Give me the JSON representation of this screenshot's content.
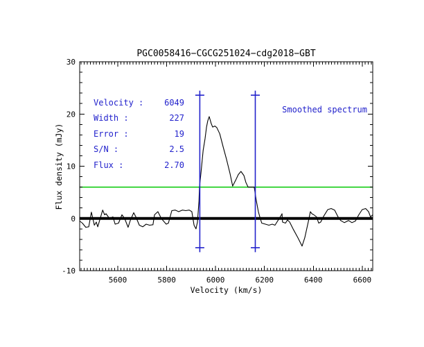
{
  "title": "PGC0058416−CGCG251024−cdg2018−GBT",
  "stats": [
    {
      "label": "Velocity :",
      "value": "6049"
    },
    {
      "label": "Width :",
      "value": "227"
    },
    {
      "label": "Error :",
      "value": "19"
    },
    {
      "label": "S/N :",
      "value": "2.5"
    },
    {
      "label": "Flux :",
      "value": "2.70"
    }
  ],
  "note": "Smoothed spectrum",
  "colors": {
    "accent": "#2222cc",
    "threshold": "#00c800",
    "spectrum": "#000000",
    "frame": "#000000",
    "background": "#ffffff"
  },
  "chart_data": {
    "type": "line",
    "title": "PGC0058416−CGCG251024−cdg2018−GBT",
    "xlabel": "Velocity (km/s)",
    "ylabel": "Flux density (mJy)",
    "xlim": [
      5444,
      6643
    ],
    "ylim": [
      -10,
      30
    ],
    "x_ticks": [
      5600,
      5800,
      6000,
      6200,
      6400,
      6600
    ],
    "y_ticks": [
      -10,
      0,
      10,
      20,
      30
    ],
    "x_minor_step": 12.5,
    "y_minor_step": 2,
    "grid": false,
    "legend": false,
    "zero_line_mJy": 0,
    "threshold_line_mJy": 6.0,
    "line_markers_kms": [
      5935.5,
      6162.5
    ],
    "marker_flux_range": [
      -5.6,
      23.6
    ],
    "series": [
      {
        "name": "smoothed spectrum",
        "x": [
          5444,
          5455,
          5469,
          5481,
          5492,
          5504,
          5512,
          5518,
          5538,
          5546,
          5552,
          5566,
          5580,
          5589,
          5603,
          5617,
          5628,
          5642,
          5651,
          5665,
          5674,
          5688,
          5702,
          5716,
          5730,
          5744,
          5750,
          5764,
          5778,
          5798,
          5807,
          5821,
          5835,
          5849,
          5864,
          5878,
          5892,
          5903,
          5912,
          5920,
          5926,
          5932,
          5934,
          5940,
          5949,
          5957,
          5963,
          5968,
          5974,
          5982,
          5988,
          5997,
          6005,
          6017,
          6031,
          6045,
          6059,
          6070,
          6082,
          6093,
          6104,
          6116,
          6124,
          6133,
          6144,
          6158,
          6167,
          6175,
          6181,
          6189,
          6204,
          6218,
          6232,
          6243,
          6266,
          6272,
          6274,
          6286,
          6294,
          6303,
          6317,
          6337,
          6354,
          6365,
          6379,
          6388,
          6394,
          6402,
          6413,
          6422,
          6430,
          6442,
          6459,
          6473,
          6487,
          6501,
          6512,
          6527,
          6544,
          6558,
          6572,
          6586,
          6600,
          6614,
          6626,
          6634,
          6643
        ],
        "y": [
          -0.5,
          -0.9,
          -1.7,
          -1.6,
          1.2,
          -1.3,
          -0.7,
          -1.6,
          1.6,
          0.7,
          0.9,
          0.0,
          0.3,
          -1.1,
          -0.9,
          0.7,
          0.0,
          -1.7,
          -0.4,
          1.1,
          0.3,
          -1.3,
          -1.6,
          -1.1,
          -1.3,
          -1.2,
          0.7,
          1.3,
          0.0,
          -1.1,
          -0.9,
          1.5,
          1.6,
          1.3,
          1.6,
          1.5,
          1.6,
          1.3,
          -1.3,
          -2.0,
          -0.7,
          3.3,
          6.0,
          8.6,
          13.0,
          15.3,
          17.5,
          18.7,
          19.5,
          18.2,
          17.5,
          17.7,
          17.4,
          16.2,
          13.7,
          11.3,
          8.6,
          6.2,
          7.3,
          8.4,
          9.0,
          8.2,
          6.9,
          6.0,
          6.0,
          6.0,
          3.3,
          1.3,
          0.3,
          -0.9,
          -1.1,
          -1.3,
          -1.1,
          -1.3,
          0.4,
          0.9,
          -0.7,
          -0.9,
          -0.3,
          -0.7,
          -2.0,
          -3.7,
          -5.3,
          -3.7,
          -0.7,
          1.3,
          0.9,
          0.7,
          0.3,
          -0.9,
          -0.7,
          0.4,
          1.7,
          1.9,
          1.6,
          0.3,
          -0.4,
          -0.8,
          -0.4,
          -0.8,
          -0.5,
          0.7,
          1.7,
          1.9,
          1.3,
          0.3,
          0.7
        ]
      }
    ]
  }
}
